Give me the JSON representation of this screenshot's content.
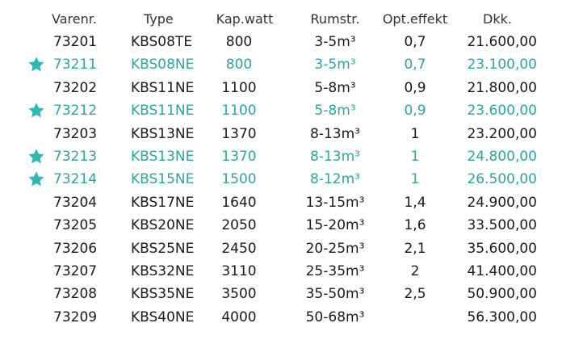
{
  "header": {
    "nr": "Varenr.",
    "type": "Type",
    "kap": "Kap.watt",
    "rum": "Rumstr.",
    "opt": "Opt.effekt",
    "dkk": "Dkk."
  },
  "colors": {
    "highlight": "#2fa3a0",
    "star": "#2fb7b4"
  },
  "rows": [
    {
      "nr": "73201",
      "type": "KBS08TE",
      "kap": "800",
      "rum": "3-5m³",
      "opt": "0,7",
      "dkk": "21.600,00",
      "star": false
    },
    {
      "nr": "73211",
      "type": "KBS08NE",
      "kap": "800",
      "rum": "3-5m³",
      "opt": "0,7",
      "dkk": "23.100,00",
      "star": true
    },
    {
      "nr": "73202",
      "type": "KBS11NE",
      "kap": "1100",
      "rum": "5-8m³",
      "opt": "0,9",
      "dkk": "21.800,00",
      "star": false
    },
    {
      "nr": "73212",
      "type": "KBS11NE",
      "kap": "1100",
      "rum": "5-8m³",
      "opt": "0,9",
      "dkk": "23.600,00",
      "star": true
    },
    {
      "nr": "73203",
      "type": "KBS13NE",
      "kap": "1370",
      "rum": "8-13m³",
      "opt": "1",
      "dkk": "23.200,00",
      "star": false
    },
    {
      "nr": "73213",
      "type": "KBS13NE",
      "kap": "1370",
      "rum": "8-13m³",
      "opt": "1",
      "dkk": "24.800,00",
      "star": true
    },
    {
      "nr": "73214",
      "type": "KBS15NE",
      "kap": "1500",
      "rum": "8-12m³",
      "opt": "1",
      "dkk": "26.500,00",
      "star": true
    },
    {
      "nr": "73204",
      "type": "KBS17NE",
      "kap": "1640",
      "rum": "13-15m³",
      "opt": "1,4",
      "dkk": "24.900,00",
      "star": false
    },
    {
      "nr": "73205",
      "type": "KBS20NE",
      "kap": "2050",
      "rum": "15-20m³",
      "opt": "1,6",
      "dkk": "33.500,00",
      "star": false
    },
    {
      "nr": "73206",
      "type": "KBS25NE",
      "kap": "2450",
      "rum": "20-25m³",
      "opt": "2,1",
      "dkk": "35.600,00",
      "star": false
    },
    {
      "nr": "73207",
      "type": "KBS32NE",
      "kap": "3110",
      "rum": "25-35m³",
      "opt": "2",
      "dkk": "41.400,00",
      "star": false
    },
    {
      "nr": "73208",
      "type": "KBS35NE",
      "kap": "3500",
      "rum": "35-50m³",
      "opt": "2,5",
      "dkk": "50.900,00",
      "star": false
    },
    {
      "nr": "73209",
      "type": "KBS40NE",
      "kap": "4000",
      "rum": "50-68m³",
      "opt": "",
      "dkk": "56.300,00",
      "star": false
    }
  ]
}
